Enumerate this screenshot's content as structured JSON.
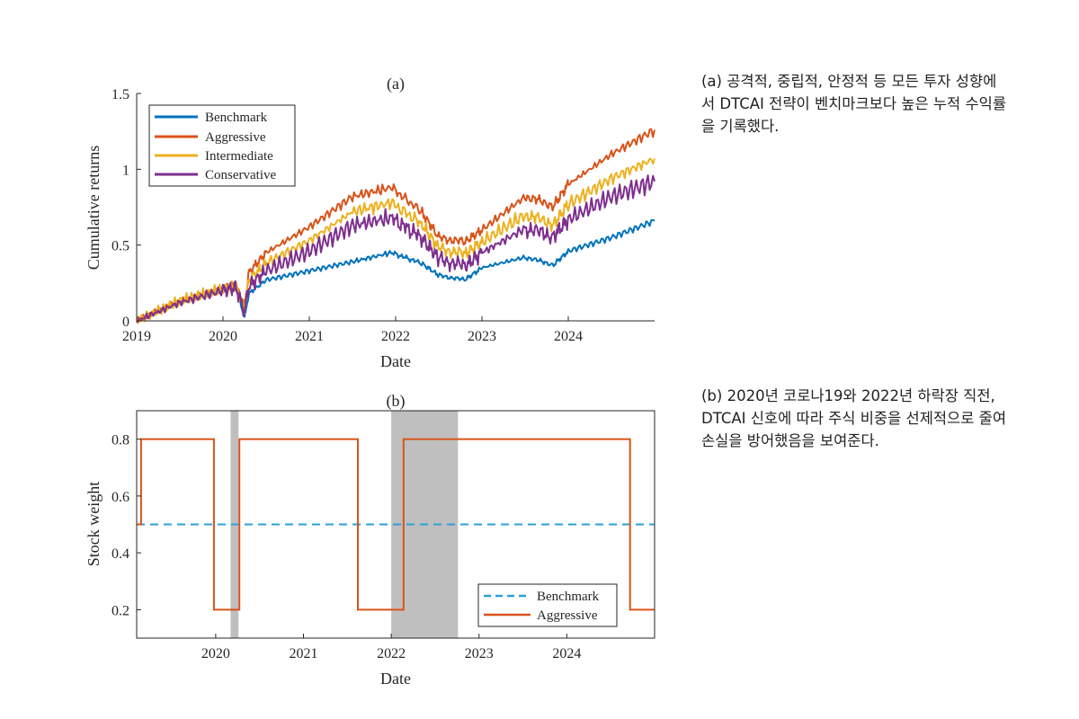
{
  "captions": {
    "a": "(a) 공격적, 중립적, 안정적 등 모든 투자 성향에서 DTCAI 전략이 벤치마크보다 높은 누적 수익률을 기록했다.",
    "b": "(b) 2020년 코로나19와 2022년 하락장 직전, DTCAI 신호에 따라 주식 비중을 선제적으로 줄여 손실을 방어했음을 보여준다."
  },
  "chart_data": [
    {
      "type": "line",
      "title": "(a)",
      "xlabel": "Date",
      "ylabel": "Cumulative returns",
      "xlim": [
        2019.0,
        2025.0
      ],
      "ylim": [
        0,
        1.5
      ],
      "xticks": [
        "2019",
        "2020",
        "2021",
        "2022",
        "2023",
        "2024"
      ],
      "yticks": [
        "0",
        "0.5",
        "1",
        "1.5"
      ],
      "legend": "top-left",
      "series": [
        {
          "name": "Benchmark",
          "color": "#0072BD",
          "x": [
            2019.0,
            2019.5,
            2020.0,
            2020.15,
            2020.25,
            2020.3,
            2020.5,
            2021.0,
            2021.5,
            2021.95,
            2022.3,
            2022.5,
            2022.8,
            2023.0,
            2023.5,
            2023.83,
            2024.0,
            2024.5,
            2025.0
          ],
          "y": [
            0.0,
            0.12,
            0.2,
            0.22,
            0.02,
            0.18,
            0.27,
            0.33,
            0.39,
            0.45,
            0.38,
            0.3,
            0.27,
            0.35,
            0.42,
            0.37,
            0.46,
            0.55,
            0.66
          ]
        },
        {
          "name": "Aggressive",
          "color": "#D95319",
          "x": [
            2019.0,
            2019.5,
            2020.0,
            2020.15,
            2020.25,
            2020.3,
            2020.5,
            2021.0,
            2021.5,
            2021.95,
            2022.3,
            2022.5,
            2022.8,
            2023.0,
            2023.5,
            2023.83,
            2024.0,
            2024.5,
            2025.0
          ],
          "y": [
            0.0,
            0.13,
            0.22,
            0.23,
            0.1,
            0.32,
            0.45,
            0.62,
            0.82,
            0.88,
            0.72,
            0.55,
            0.52,
            0.6,
            0.82,
            0.76,
            0.9,
            1.1,
            1.26
          ]
        },
        {
          "name": "Intermediate",
          "color": "#EDB120",
          "x": [
            2019.0,
            2019.5,
            2020.0,
            2020.15,
            2020.25,
            2020.3,
            2020.5,
            2021.0,
            2021.5,
            2021.95,
            2022.3,
            2022.5,
            2022.8,
            2023.0,
            2023.5,
            2023.83,
            2024.0,
            2024.5,
            2025.0
          ],
          "y": [
            0.0,
            0.13,
            0.21,
            0.23,
            0.08,
            0.27,
            0.38,
            0.53,
            0.72,
            0.78,
            0.64,
            0.48,
            0.44,
            0.52,
            0.7,
            0.64,
            0.77,
            0.94,
            1.07
          ]
        },
        {
          "name": "Conservative",
          "color": "#7E2F8E",
          "x": [
            2019.0,
            2019.5,
            2020.0,
            2020.15,
            2020.25,
            2020.3,
            2020.5,
            2021.0,
            2021.5,
            2021.95,
            2022.3,
            2022.5,
            2022.8,
            2023.0,
            2023.5,
            2023.83,
            2024.0,
            2024.5,
            2025.0
          ],
          "y": [
            0.0,
            0.12,
            0.2,
            0.22,
            0.06,
            0.23,
            0.33,
            0.46,
            0.63,
            0.68,
            0.55,
            0.41,
            0.36,
            0.45,
            0.61,
            0.56,
            0.67,
            0.82,
            0.92
          ]
        }
      ]
    },
    {
      "type": "line",
      "title": "(b)",
      "xlabel": "Date",
      "ylabel": "Stock weight",
      "xlim": [
        2019.1,
        2025.0
      ],
      "ylim": [
        0.1,
        0.9
      ],
      "xticks": [
        "2020",
        "2021",
        "2022",
        "2023",
        "2024"
      ],
      "yticks": [
        "0.2",
        "0.4",
        "0.6",
        "0.8"
      ],
      "legend": "bottom-right",
      "shaded_periods": [
        [
          2020.17,
          2020.26
        ],
        [
          2022.0,
          2022.76
        ]
      ],
      "series": [
        {
          "name": "Benchmark",
          "color": "#2BA0D8",
          "style": "dashed",
          "x": [
            2019.1,
            2025.0
          ],
          "y": [
            0.5,
            0.5
          ]
        },
        {
          "name": "Aggressive",
          "color": "#D95319",
          "style": "step",
          "x": [
            2019.1,
            2019.15,
            2019.15,
            2019.98,
            2019.98,
            2020.27,
            2020.27,
            2021.62,
            2021.62,
            2022.14,
            2022.14,
            2024.72,
            2024.72,
            2025.0
          ],
          "y": [
            0.5,
            0.5,
            0.8,
            0.8,
            0.2,
            0.2,
            0.8,
            0.8,
            0.2,
            0.2,
            0.8,
            0.8,
            0.2,
            0.2
          ]
        }
      ]
    }
  ]
}
